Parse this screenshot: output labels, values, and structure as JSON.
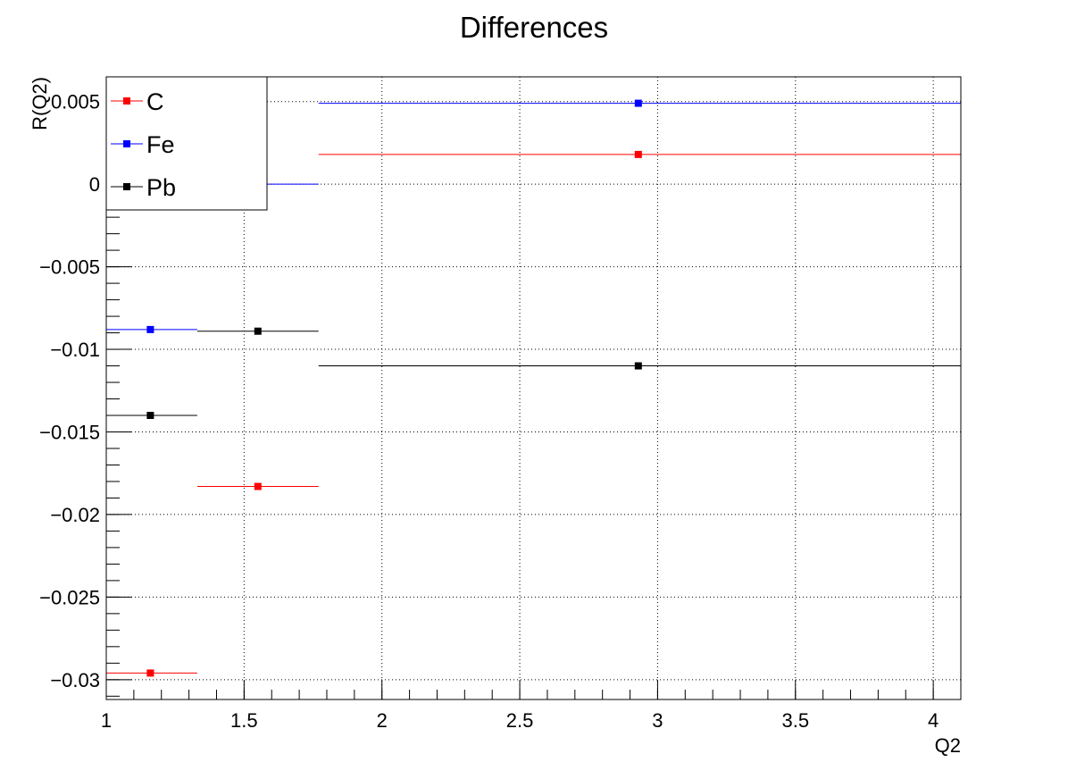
{
  "chart_data": {
    "type": "scatter",
    "title": "Differences",
    "xlabel": "Q2",
    "ylabel": "R(Q2)",
    "xlim": [
      1,
      4.1
    ],
    "ylim": [
      -0.0312,
      0.0065
    ],
    "grid": true,
    "legend_position": "top-left",
    "x_ticks": [
      {
        "value": 1,
        "label": "1"
      },
      {
        "value": 1.5,
        "label": "1.5"
      },
      {
        "value": 2,
        "label": "2"
      },
      {
        "value": 2.5,
        "label": "2.5"
      },
      {
        "value": 3,
        "label": "3"
      },
      {
        "value": 3.5,
        "label": "3.5"
      },
      {
        "value": 4,
        "label": "4"
      }
    ],
    "y_ticks": [
      {
        "value": 0.005,
        "label": "0.005"
      },
      {
        "value": 0,
        "label": "0"
      },
      {
        "value": -0.005,
        "label": "−0.005"
      },
      {
        "value": -0.01,
        "label": "−0.01"
      },
      {
        "value": -0.015,
        "label": "−0.015"
      },
      {
        "value": -0.02,
        "label": "−0.02"
      },
      {
        "value": -0.025,
        "label": "−0.025"
      },
      {
        "value": -0.03,
        "label": "−0.03"
      }
    ],
    "series": [
      {
        "name": "C",
        "color": "#ff0000",
        "points": [
          {
            "x": 1.16,
            "xlo": 1.0,
            "xhi": 1.33,
            "y": -0.0296
          },
          {
            "x": 1.55,
            "xlo": 1.33,
            "xhi": 1.77,
            "y": -0.0183
          },
          {
            "x": 2.93,
            "xlo": 1.77,
            "xhi": 4.1,
            "y": 0.0018
          }
        ]
      },
      {
        "name": "Fe",
        "color": "#0000ff",
        "points": [
          {
            "x": 1.16,
            "xlo": 1.0,
            "xhi": 1.33,
            "y": -0.0088
          },
          {
            "x": 1.55,
            "xlo": 1.33,
            "xhi": 1.77,
            "y": 0.0
          },
          {
            "x": 2.93,
            "xlo": 1.77,
            "xhi": 4.1,
            "y": 0.0049
          }
        ]
      },
      {
        "name": "Pb",
        "color": "#000000",
        "points": [
          {
            "x": 1.16,
            "xlo": 1.0,
            "xhi": 1.33,
            "y": -0.014
          },
          {
            "x": 1.55,
            "xlo": 1.33,
            "xhi": 1.77,
            "y": -0.0089
          },
          {
            "x": 2.93,
            "xlo": 1.77,
            "xhi": 4.1,
            "y": -0.011
          }
        ]
      }
    ]
  }
}
